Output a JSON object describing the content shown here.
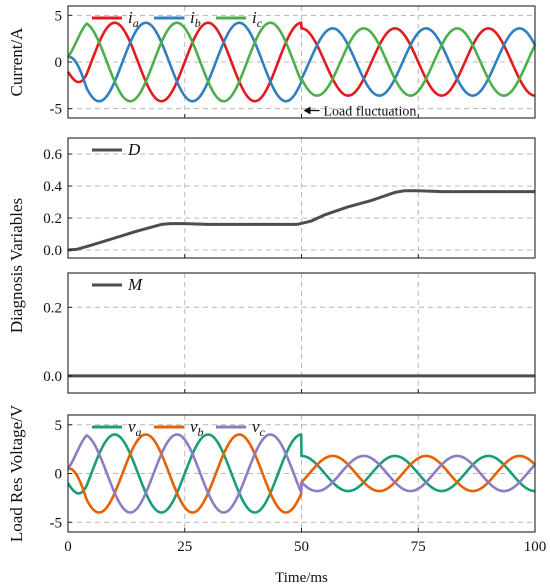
{
  "chart_data": [
    {
      "type": "line",
      "ylabel": "Current/A",
      "xlim": [
        0,
        100
      ],
      "ylim": [
        -6,
        6
      ],
      "yticks": [
        -5,
        0,
        5
      ],
      "xticks": [
        0,
        25,
        50,
        75,
        100
      ],
      "grid": true,
      "legend_position": "top-left",
      "annotation": {
        "text": "Load fluctuation",
        "x": 50,
        "y": -5.2
      },
      "series": [
        {
          "name": "i",
          "sub": "a",
          "color": "#e41a1c",
          "amplitude": [
            4.2,
            4.2,
            3.6,
            3.6
          ],
          "phase_deg": -90,
          "freq_hz": 50
        },
        {
          "name": "i",
          "sub": "b",
          "color": "#2f7fc1",
          "amplitude": [
            4.2,
            4.2,
            3.6,
            3.6
          ],
          "phase_deg": 150,
          "freq_hz": 50
        },
        {
          "name": "i",
          "sub": "c",
          "color": "#4daf4a",
          "amplitude": [
            4.2,
            4.2,
            3.6,
            3.6
          ],
          "phase_deg": 30,
          "freq_hz": 50
        }
      ],
      "amplitude_time_ms": [
        0,
        50,
        50,
        100
      ]
    },
    {
      "type": "line",
      "ylabel": "Diagnosis Variables",
      "xlim": [
        0,
        100
      ],
      "ylim": [
        -0.05,
        0.7
      ],
      "yticks": [
        0.0,
        0.2,
        0.4,
        0.6
      ],
      "xticks": [
        0,
        25,
        50,
        75,
        100
      ],
      "grid": true,
      "legend_position": "top-left",
      "series": [
        {
          "name": "D",
          "color": "#4d4d4d",
          "x": [
            0,
            2,
            5,
            10,
            15,
            20,
            22,
            25,
            30,
            40,
            49,
            52,
            55,
            60,
            65,
            70,
            72,
            75,
            80,
            90,
            100
          ],
          "y": [
            0.0,
            0.005,
            0.03,
            0.075,
            0.12,
            0.16,
            0.165,
            0.165,
            0.16,
            0.16,
            0.16,
            0.18,
            0.22,
            0.27,
            0.31,
            0.36,
            0.37,
            0.37,
            0.365,
            0.365,
            0.365
          ]
        }
      ]
    },
    {
      "type": "line",
      "ylabel": "",
      "xlim": [
        0,
        100
      ],
      "ylim": [
        -0.05,
        0.3
      ],
      "yticks": [
        0.0,
        0.2
      ],
      "xticks": [
        0,
        25,
        50,
        75,
        100
      ],
      "grid": true,
      "legend_position": "top-left",
      "series": [
        {
          "name": "M",
          "color": "#4d4d4d",
          "x": [
            0,
            100
          ],
          "y": [
            0.0,
            0.0
          ]
        }
      ]
    },
    {
      "type": "line",
      "ylabel": "Load Res Voltage/V",
      "xlabel": "Time/ms",
      "xlim": [
        0,
        100
      ],
      "ylim": [
        -6,
        6
      ],
      "yticks": [
        -5,
        0,
        5
      ],
      "xticks": [
        0,
        25,
        50,
        75,
        100
      ],
      "grid": true,
      "legend_position": "top-left",
      "series": [
        {
          "name": "v",
          "sub": "a",
          "color": "#1b9e77",
          "amplitude": [
            4.0,
            4.0,
            1.8,
            1.8
          ],
          "phase_deg": -90,
          "freq_hz": 50
        },
        {
          "name": "v",
          "sub": "b",
          "color": "#e66101",
          "amplitude": [
            4.0,
            4.0,
            1.8,
            1.8
          ],
          "phase_deg": 150,
          "freq_hz": 50
        },
        {
          "name": "v",
          "sub": "c",
          "color": "#8e7cc3",
          "amplitude": [
            4.0,
            4.0,
            1.8,
            1.8
          ],
          "phase_deg": 30,
          "freq_hz": 50
        }
      ],
      "amplitude_time_ms": [
        0,
        50,
        50,
        100
      ]
    }
  ],
  "labels": {
    "diag_ylabel": "Diagnosis Variables"
  }
}
